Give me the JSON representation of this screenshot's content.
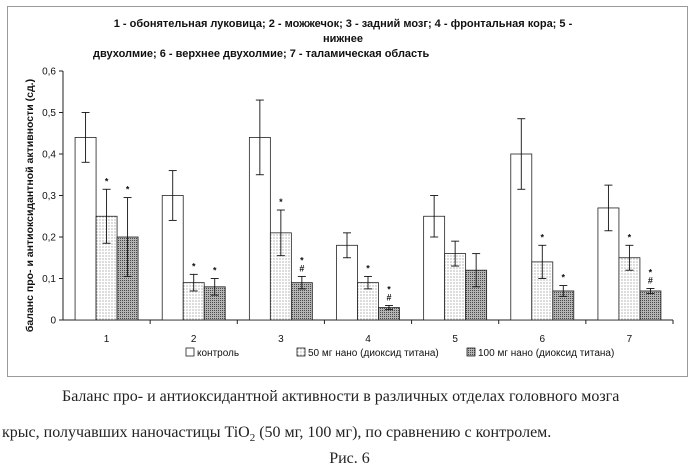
{
  "figure": {
    "legend_title_line1": "1 - обонятельная луковица; 2 - можжечок; 3 - задний мозг; 4 - фронтальная кора; 5 - нижнее",
    "legend_title_line2": "двухолмие; 6 - верхнее двухолмие; 7 - таламическая область",
    "caption_line1": "Баланс про- и антиоксидантной активности в различных отделах головного мозга",
    "caption_line2_before": "крыс, получавших наночастицы TiO",
    "caption_line2_sub": "2",
    "caption_line2_after": " (50 мг, 100 мг),  по сравнению с контролем.",
    "fig_label": "Рис. 6"
  },
  "colors": {
    "control_fill": "#ffffff",
    "nano50_fill": "#f2f2f2",
    "nano100_fill": "#9a9a9a",
    "axis": "#222222"
  },
  "chart_data": {
    "type": "bar",
    "ylabel": "баланс про- и антиоксидантной активности (сд.)",
    "xlabel": "",
    "ylim": [
      0,
      0.6
    ],
    "ytick_labels": [
      "0",
      "0,1",
      "0,2",
      "0,3",
      "0,4",
      "0,5",
      "0,6"
    ],
    "ytick_values": [
      0,
      0.1,
      0.2,
      0.3,
      0.4,
      0.5,
      0.6
    ],
    "categories": [
      "1",
      "2",
      "3",
      "4",
      "5",
      "6",
      "7"
    ],
    "legend_position": "bottom",
    "series": [
      {
        "name": "контроль",
        "values": [
          0.44,
          0.3,
          0.44,
          0.18,
          0.25,
          0.4,
          0.27
        ],
        "errors": [
          0.06,
          0.06,
          0.09,
          0.03,
          0.05,
          0.085,
          0.055
        ],
        "markers": [
          "",
          "",
          "",
          "",
          "",
          "",
          ""
        ]
      },
      {
        "name": "50 мг нано (диоксид титана)",
        "values": [
          0.25,
          0.09,
          0.21,
          0.09,
          0.16,
          0.14,
          0.15
        ],
        "errors": [
          0.065,
          0.02,
          0.055,
          0.015,
          0.03,
          0.04,
          0.03
        ],
        "markers": [
          "*",
          "*",
          "*",
          "*",
          "",
          "*",
          "*"
        ]
      },
      {
        "name": "100 мг нано (диоксид титана)",
        "values": [
          0.2,
          0.08,
          0.09,
          0.03,
          0.12,
          0.07,
          0.07
        ],
        "errors": [
          0.095,
          0.02,
          0.015,
          0.005,
          0.04,
          0.013,
          0.006
        ],
        "markers": [
          "*",
          "*",
          "*#",
          "*#",
          "",
          "*",
          "*#"
        ]
      }
    ]
  }
}
